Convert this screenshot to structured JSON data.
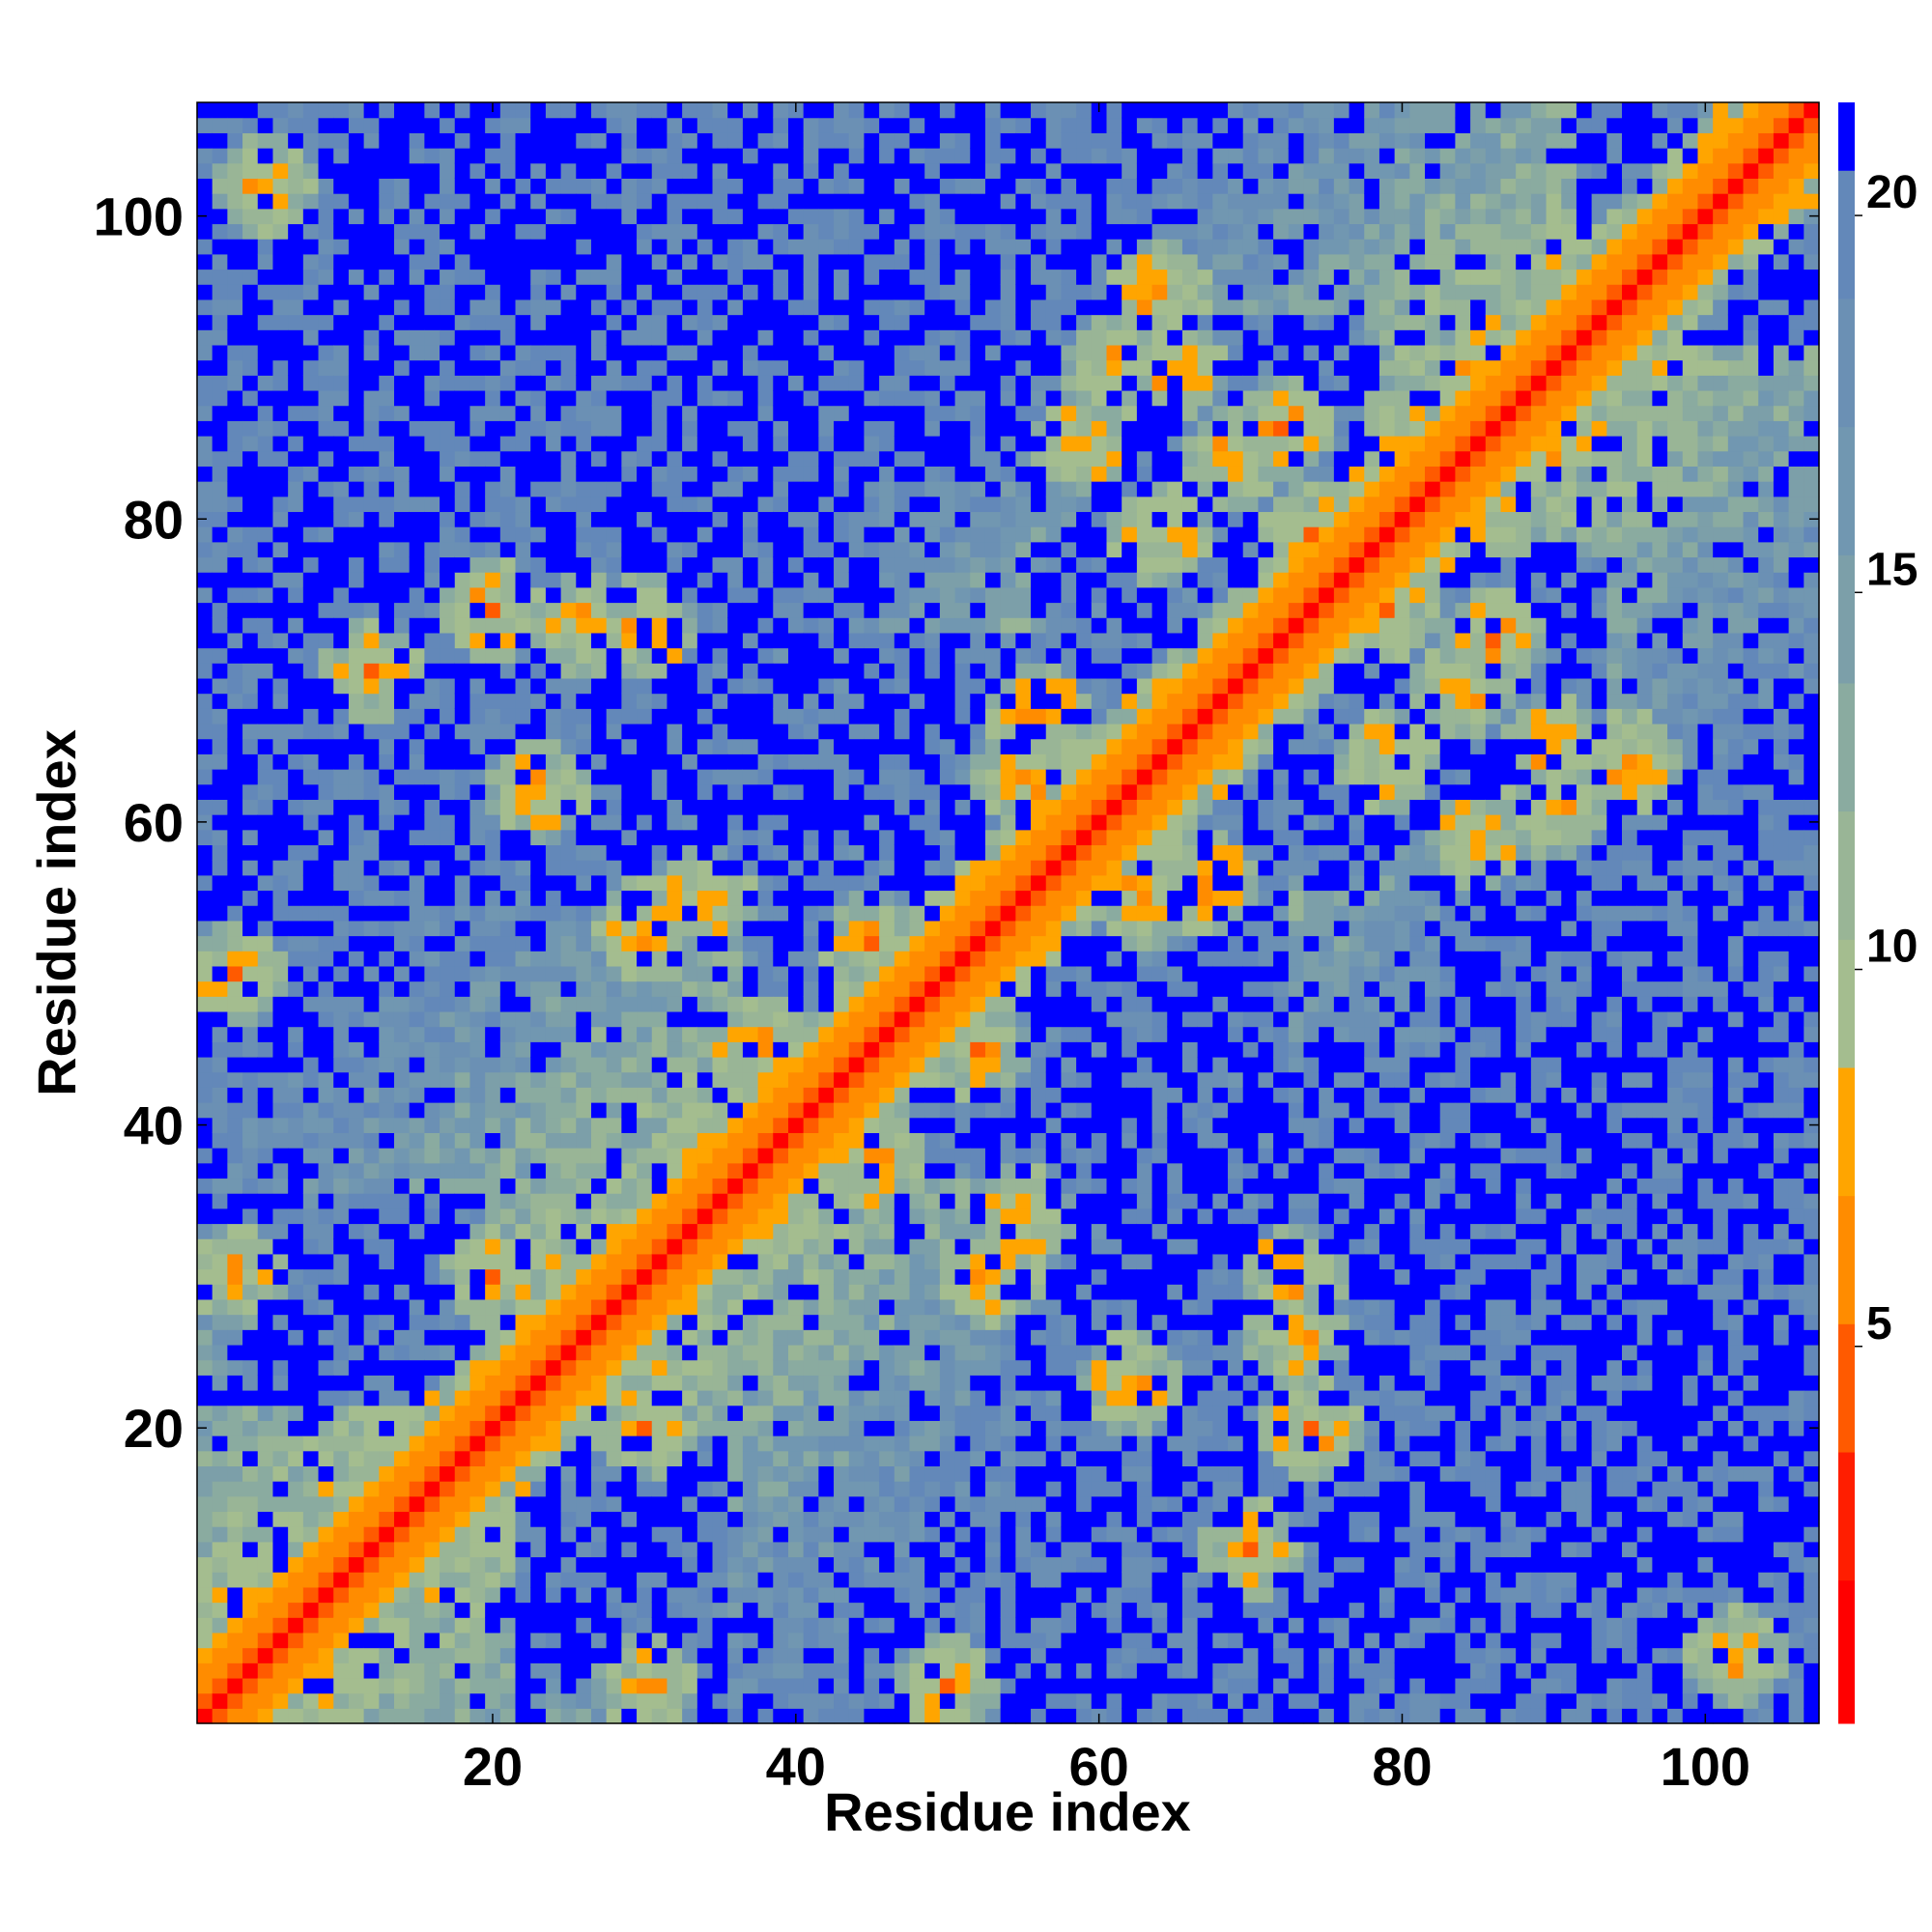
{
  "chart_data": {
    "type": "heatmap",
    "title": "",
    "xlabel": "Residue index",
    "ylabel": "Residue index",
    "xlim": [
      1,
      107
    ],
    "ylim": [
      1,
      107
    ],
    "n_residues": 107,
    "x_ticks": [
      20,
      40,
      60,
      80,
      100
    ],
    "y_ticks": [
      20,
      40,
      60,
      80,
      100
    ],
    "x_tick_labels": [
      "20",
      "40",
      "60",
      "80",
      "100"
    ],
    "y_tick_labels": [
      "20",
      "40",
      "60",
      "80",
      "100"
    ],
    "colorbar": {
      "range": [
        0,
        21.5
      ],
      "ticks": [
        5,
        10,
        15,
        20
      ],
      "tick_labels": [
        "5",
        "10",
        "15",
        "20"
      ],
      "colors": {
        "very_close": "#ff0000",
        "close": "#ff5a00",
        "near": "#ffa000",
        "mid": "#a4bd8f",
        "far": "#6b90b4",
        "very_far": "#0000ff"
      },
      "levels": [
        {
          "max": 1.9,
          "color": "#ff0000"
        },
        {
          "max": 3.6,
          "color": "#ff1e00"
        },
        {
          "max": 5.3,
          "color": "#ff5a00"
        },
        {
          "max": 7.0,
          "color": "#ff8c00"
        },
        {
          "max": 8.7,
          "color": "#ffa500"
        },
        {
          "max": 10.4,
          "color": "#a4bd8f"
        },
        {
          "max": 12.1,
          "color": "#99b596"
        },
        {
          "max": 13.8,
          "color": "#8aaba0"
        },
        {
          "max": 15.5,
          "color": "#7c9fa9"
        },
        {
          "max": 17.2,
          "color": "#7197b1"
        },
        {
          "max": 18.9,
          "color": "#6b90b4"
        },
        {
          "max": 20.6,
          "color": "#6388b9"
        },
        {
          "max": 21.5,
          "color": "#0000ff"
        }
      ]
    },
    "pattern": {
      "description_free": true,
      "far_regions": [
        [
          62,
          67,
          38,
          73
        ],
        [
          99,
          103,
          97,
          103
        ],
        [
          27,
          30,
          8,
          14
        ],
        [
          48,
          51,
          88,
          96
        ],
        [
          88,
          93,
          48,
          56
        ],
        [
          78,
          84,
          32,
          40
        ],
        [
          60,
          66,
          17,
          27
        ],
        [
          64,
          72,
          74,
          88
        ],
        [
          57,
          60,
          88,
          100
        ],
        [
          42,
          47,
          48,
          56
        ],
        [
          6,
          10,
          88,
          95
        ]
      ],
      "contact_hotspots": [
        [
          20,
          74
        ],
        [
          26,
          73
        ],
        [
          34,
          55
        ],
        [
          38,
          45
        ],
        [
          45,
          52
        ],
        [
          60,
          57
        ],
        [
          63,
          55
        ],
        [
          67,
          56
        ],
        [
          72,
          86
        ],
        [
          76,
          79
        ],
        [
          79,
          74
        ],
        [
          90,
          85
        ],
        [
          30,
          3
        ],
        [
          30,
          20
        ],
        [
          70,
          12
        ],
        [
          73,
          30
        ],
        [
          59,
          85
        ],
        [
          61,
          90
        ],
        [
          64,
          79
        ],
        [
          84,
          69
        ],
        [
          90,
          65
        ],
        [
          95,
          64
        ],
        [
          102,
          5
        ],
        [
          50,
          3
        ],
        [
          30,
          53
        ],
        [
          62,
          23
        ]
      ]
    }
  }
}
